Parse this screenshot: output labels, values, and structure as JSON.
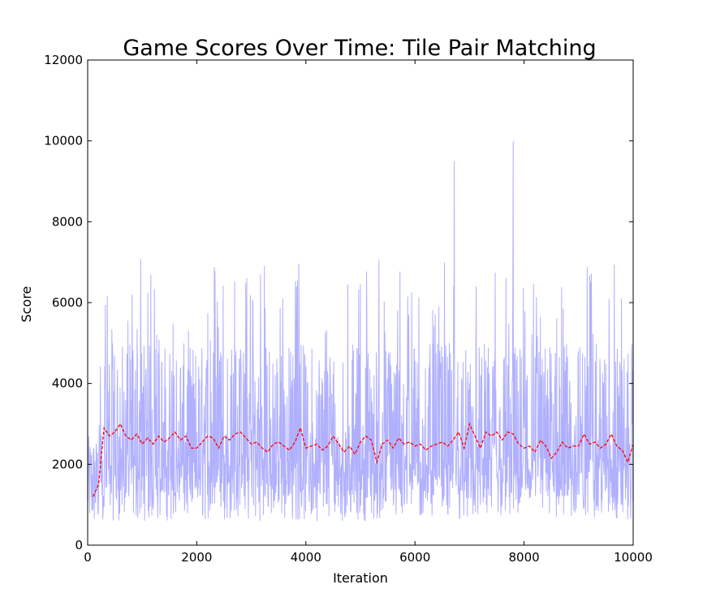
{
  "chart_data": {
    "type": "line",
    "title": "Game Scores Over Time: Tile Pair Matching",
    "xlabel": "Iteration",
    "ylabel": "Score",
    "xlim": [
      0,
      10000
    ],
    "ylim": [
      0,
      12000
    ],
    "xticks": [
      0,
      2000,
      4000,
      6000,
      8000,
      10000
    ],
    "yticks": [
      0,
      2000,
      4000,
      6000,
      8000,
      10000,
      12000
    ],
    "xtick_labels": [
      "0",
      "2000",
      "4000",
      "6000",
      "8000",
      "10000"
    ],
    "ytick_labels": [
      "0",
      "2000",
      "4000",
      "6000",
      "8000",
      "10000",
      "12000"
    ],
    "grid": false,
    "series": [
      {
        "color": "#b0b0ff",
        "style": "solid",
        "description": "per-iteration score, fluctuating roughly between 300 and 7000 with spikes near 9500 and 10000",
        "stats": {
          "low": 300,
          "high": 7000,
          "spikes": [
            [
              6720,
              9500
            ],
            [
              7800,
              10000
            ]
          ]
        }
      },
      {
        "color": "#ff0000",
        "style": "dashed",
        "x": [
          100,
          200,
          300,
          400,
          500,
          600,
          700,
          800,
          900,
          1000,
          1100,
          1200,
          1300,
          1400,
          1500,
          1600,
          1700,
          1800,
          1900,
          2000,
          2100,
          2200,
          2300,
          2400,
          2500,
          2600,
          2700,
          2800,
          2900,
          3000,
          3100,
          3200,
          3300,
          3400,
          3500,
          3600,
          3700,
          3800,
          3900,
          4000,
          4100,
          4200,
          4300,
          4400,
          4500,
          4600,
          4700,
          4800,
          4900,
          5000,
          5100,
          5200,
          5300,
          5400,
          5500,
          5600,
          5700,
          5800,
          5900,
          6000,
          6100,
          6200,
          6300,
          6400,
          6500,
          6600,
          6700,
          6800,
          6900,
          7000,
          7100,
          7200,
          7300,
          7400,
          7500,
          7600,
          7700,
          7800,
          7900,
          8000,
          8100,
          8200,
          8300,
          8400,
          8500,
          8600,
          8700,
          8800,
          8900,
          9000,
          9100,
          9200,
          9300,
          9400,
          9500,
          9600,
          9700,
          9800,
          9900,
          10000
        ],
        "values": [
          1200,
          1500,
          2900,
          2700,
          2800,
          3000,
          2700,
          2600,
          2750,
          2500,
          2650,
          2500,
          2700,
          2550,
          2650,
          2800,
          2600,
          2700,
          2400,
          2400,
          2550,
          2700,
          2650,
          2400,
          2700,
          2600,
          2750,
          2800,
          2650,
          2500,
          2550,
          2400,
          2300,
          2500,
          2550,
          2450,
          2350,
          2550,
          2900,
          2400,
          2450,
          2500,
          2350,
          2450,
          2700,
          2500,
          2300,
          2450,
          2250,
          2550,
          2700,
          2600,
          2050,
          2500,
          2600,
          2400,
          2650,
          2500,
          2550,
          2450,
          2500,
          2350,
          2450,
          2500,
          2550,
          2450,
          2600,
          2800,
          2400,
          3000,
          2700,
          2400,
          2800,
          2700,
          2800,
          2600,
          2800,
          2750,
          2500,
          2400,
          2450,
          2300,
          2600,
          2450,
          2150,
          2300,
          2550,
          2400,
          2450,
          2450,
          2750,
          2500,
          2550,
          2400,
          2500,
          2750,
          2450,
          2350,
          2050,
          2500
        ]
      }
    ]
  }
}
